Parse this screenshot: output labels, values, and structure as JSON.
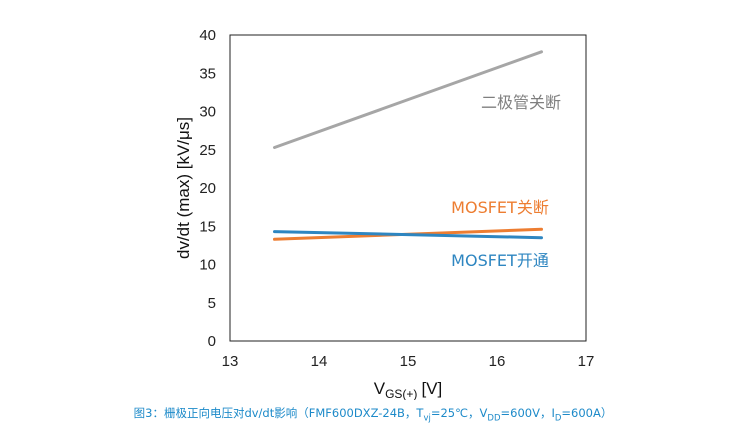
{
  "chart_data": {
    "type": "line",
    "xlabel": "V",
    "xlabel_sub": "GS(+)",
    "xlabel_unit": "[V]",
    "ylabel": "dv/dt (max) [kV/μs]",
    "xlim": [
      13,
      17
    ],
    "ylim": [
      0,
      40
    ],
    "xticks": [
      "13",
      "14",
      "15",
      "16",
      "17"
    ],
    "yticks": [
      "0",
      "5",
      "10",
      "15",
      "20",
      "25",
      "30",
      "35",
      "40"
    ],
    "grid": false,
    "series": [
      {
        "name": "二极管关断",
        "color": "#a6a6a6",
        "x": [
          13.5,
          16.5
        ],
        "y": [
          25.3,
          37.8
        ]
      },
      {
        "name": "MOSFET关断",
        "color": "#ed7d31",
        "x": [
          13.5,
          16.5
        ],
        "y": [
          13.3,
          14.6
        ]
      },
      {
        "name": "MOSFET开通",
        "color": "#2e86c1",
        "x": [
          13.5,
          16.5
        ],
        "y": [
          14.3,
          13.5
        ]
      }
    ]
  },
  "caption": {
    "prefix": "图3：栅极正向电压对dv/dt影响（FMF600DXZ-24B，T",
    "tvj_sub": "vj",
    "mid1": "=25℃，V",
    "vdd_sub": "DD",
    "mid2": "=600V，I",
    "id_sub": "D",
    "suffix": "=600A）"
  }
}
